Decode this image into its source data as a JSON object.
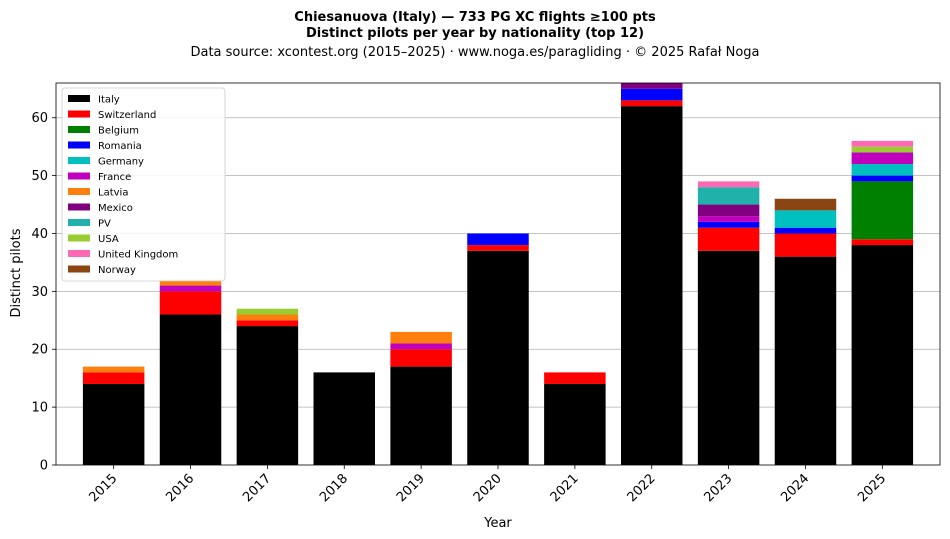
{
  "chart_data": {
    "type": "bar",
    "stacked": true,
    "title": "Chiesanuova (Italy)  —  733 PG XC flights ≥100 pts",
    "title_line2": "Distinct pilots per year by nationality (top 12)",
    "subtitle": "Data source: xcontest.org (2015–2025)  ·  www.noga.es/paragliding  ·  © 2025 Rafał Noga",
    "xlabel": "Year",
    "ylabel": "Distinct pilots",
    "ylim": [
      0,
      66
    ],
    "yticks": [
      0,
      10,
      20,
      30,
      40,
      50,
      60
    ],
    "grid": "horizontal",
    "legend_position": "top-left",
    "categories": [
      "2015",
      "2016",
      "2017",
      "2018",
      "2019",
      "2020",
      "2021",
      "2022",
      "2023",
      "2024",
      "2025"
    ],
    "series": [
      {
        "name": "Italy",
        "color": "#000000",
        "values": [
          14,
          26,
          24,
          16,
          17,
          37,
          14,
          62,
          37,
          36,
          38
        ]
      },
      {
        "name": "Switzerland",
        "color": "#ff0000",
        "values": [
          2,
          4,
          1,
          0,
          3,
          1,
          2,
          1,
          4,
          4,
          1
        ]
      },
      {
        "name": "Belgium",
        "color": "#008000",
        "values": [
          0,
          0,
          0,
          0,
          0,
          0,
          0,
          0,
          0,
          0,
          10
        ]
      },
      {
        "name": "Romania",
        "color": "#0000ff",
        "values": [
          0,
          0,
          0,
          0,
          0,
          2,
          0,
          2,
          1,
          1,
          1
        ]
      },
      {
        "name": "Germany",
        "color": "#00bfbf",
        "values": [
          0,
          0,
          0,
          0,
          0,
          0,
          0,
          0,
          0,
          3,
          2
        ]
      },
      {
        "name": "France",
        "color": "#bf00bf",
        "values": [
          0,
          1,
          0,
          0,
          1,
          0,
          0,
          0,
          1,
          0,
          2
        ]
      },
      {
        "name": "Latvia",
        "color": "#ff7f0e",
        "values": [
          1,
          1,
          1,
          0,
          2,
          0,
          0,
          0,
          0,
          0,
          0
        ]
      },
      {
        "name": "Mexico",
        "color": "#800080",
        "values": [
          0,
          0,
          0,
          0,
          0,
          0,
          0,
          1,
          2,
          0,
          0
        ]
      },
      {
        "name": "PV",
        "color": "#20b2aa",
        "values": [
          0,
          0,
          0,
          0,
          0,
          0,
          0,
          0,
          3,
          0,
          0
        ]
      },
      {
        "name": "USA",
        "color": "#9acd32",
        "values": [
          0,
          0,
          1,
          0,
          0,
          0,
          0,
          0,
          0,
          0,
          1
        ]
      },
      {
        "name": "United Kingdom",
        "color": "#ff69b4",
        "values": [
          0,
          0,
          0,
          0,
          0,
          0,
          0,
          0,
          1,
          0,
          1
        ]
      },
      {
        "name": "Norway",
        "color": "#8b4513",
        "values": [
          0,
          0,
          0,
          0,
          0,
          0,
          0,
          0,
          0,
          2,
          0
        ]
      }
    ]
  }
}
